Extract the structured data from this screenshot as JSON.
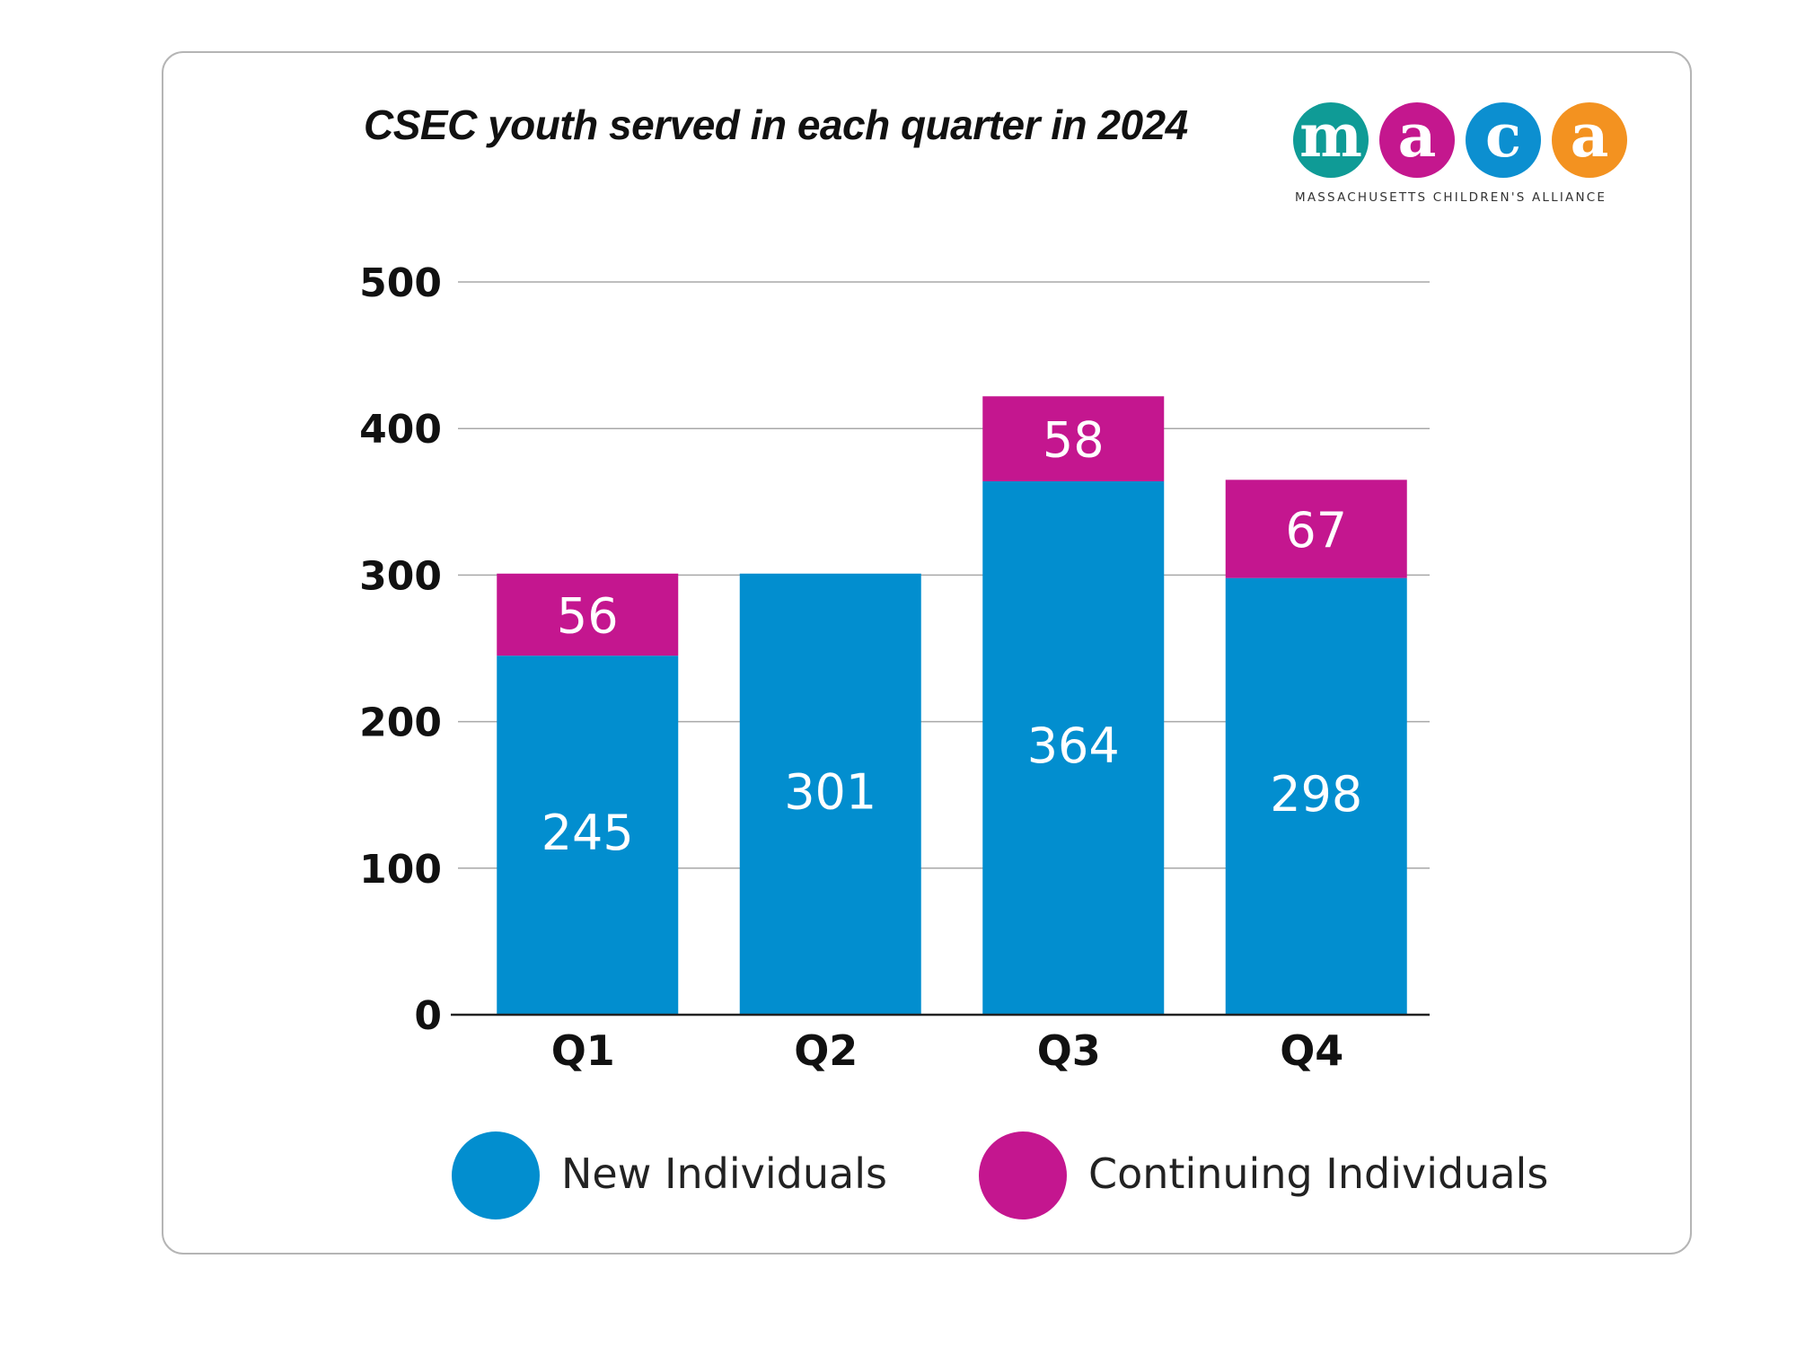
{
  "title": "CSEC youth served in each quarter in 2024",
  "logo": {
    "letters": [
      "m",
      "a",
      "c",
      "a"
    ],
    "colors": [
      "#0f9b96",
      "#c4178e",
      "#0c8fd0",
      "#f39220"
    ],
    "tagline": "MASSACHUSETTS CHILDREN'S ALLIANCE"
  },
  "colors": {
    "new": "#028ecf",
    "continuing": "#c4168f"
  },
  "chart_data": {
    "type": "bar",
    "stacked": true,
    "categories": [
      "Q1",
      "Q2",
      "Q3",
      "Q4"
    ],
    "series": [
      {
        "name": "New Individuals",
        "values": [
          245,
          301,
          364,
          298
        ]
      },
      {
        "name": "Continuing Individuals",
        "values": [
          56,
          null,
          58,
          67
        ]
      }
    ],
    "title": "CSEC youth served in each quarter in 2024",
    "ylim": [
      0,
      500
    ],
    "yticks": [
      0,
      100,
      200,
      300,
      400,
      500
    ],
    "grid": true,
    "legend": "bottom"
  }
}
